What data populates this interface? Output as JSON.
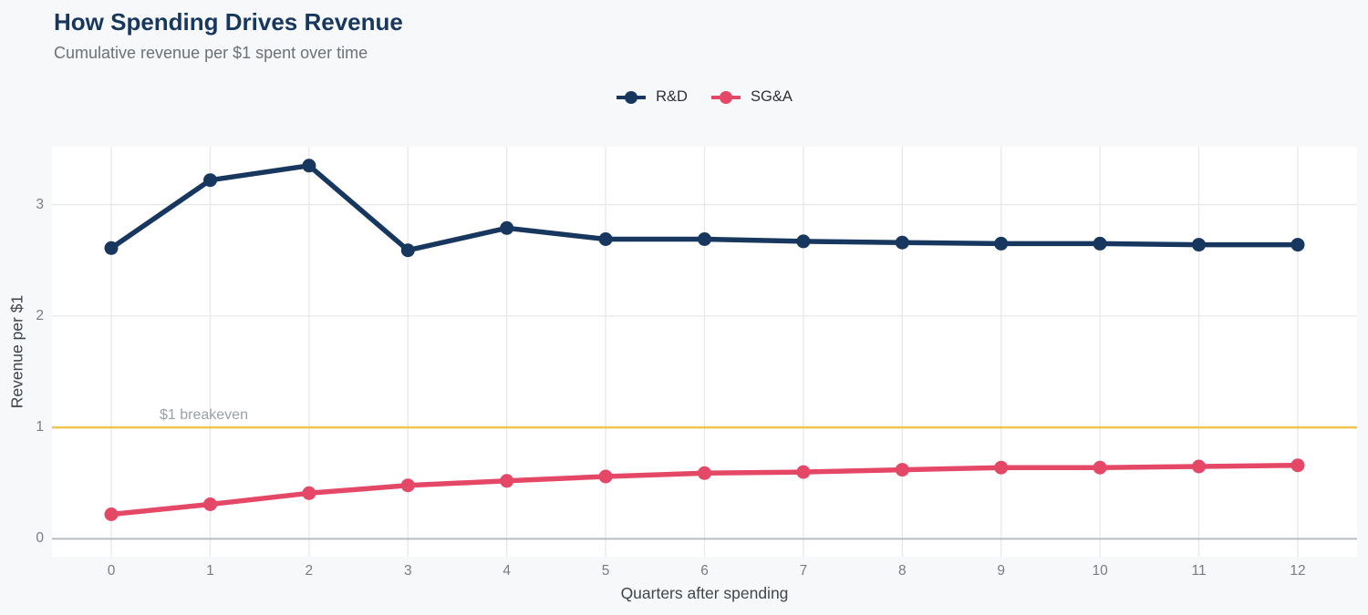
{
  "header": {
    "title": "How Spending Drives Revenue",
    "subtitle": "Cumulative revenue per $1 spent over time"
  },
  "legend": {
    "items": [
      {
        "label": "R&D",
        "color": "#17375e"
      },
      {
        "label": "SG&A",
        "color": "#e54767"
      }
    ]
  },
  "chart_data": {
    "type": "line",
    "title": "How Spending Drives Revenue",
    "subtitle": "Cumulative revenue per $1 spent over time",
    "xlabel": "Quarters after spending",
    "ylabel": "Revenue per $1",
    "x": [
      0,
      1,
      2,
      3,
      4,
      5,
      6,
      7,
      8,
      9,
      10,
      11,
      12
    ],
    "series": [
      {
        "name": "R&D",
        "color": "#17375e",
        "values": [
          2.61,
          3.22,
          3.35,
          2.59,
          2.79,
          2.69,
          2.69,
          2.67,
          2.66,
          2.65,
          2.65,
          2.64,
          2.64
        ]
      },
      {
        "name": "SG&A",
        "color": "#e54767",
        "values": [
          0.22,
          0.31,
          0.41,
          0.48,
          0.52,
          0.56,
          0.59,
          0.6,
          0.62,
          0.64,
          0.64,
          0.65,
          0.66
        ]
      }
    ],
    "x_ticks": [
      0,
      1,
      2,
      3,
      4,
      5,
      6,
      7,
      8,
      9,
      10,
      11,
      12
    ],
    "y_ticks": [
      0,
      1,
      2,
      3
    ],
    "xlim": [
      -0.6,
      12.6
    ],
    "ylim": [
      -0.16,
      3.52
    ],
    "grid": true,
    "legend_position": "top-center",
    "reference_line": {
      "y": 1,
      "label": "$1 breakeven"
    },
    "colors": {
      "page_bg": "#f7f8fa",
      "plot_bg": "#ffffff",
      "grid": "#e7e8ea",
      "zero_line": "#b9bdc3",
      "reference": "#f1c34f",
      "reference_label": "#9ba0a6",
      "tick": "#797d82",
      "axis_title": "#40454b",
      "title": "#17375e",
      "subtitle": "#6c7176"
    }
  }
}
